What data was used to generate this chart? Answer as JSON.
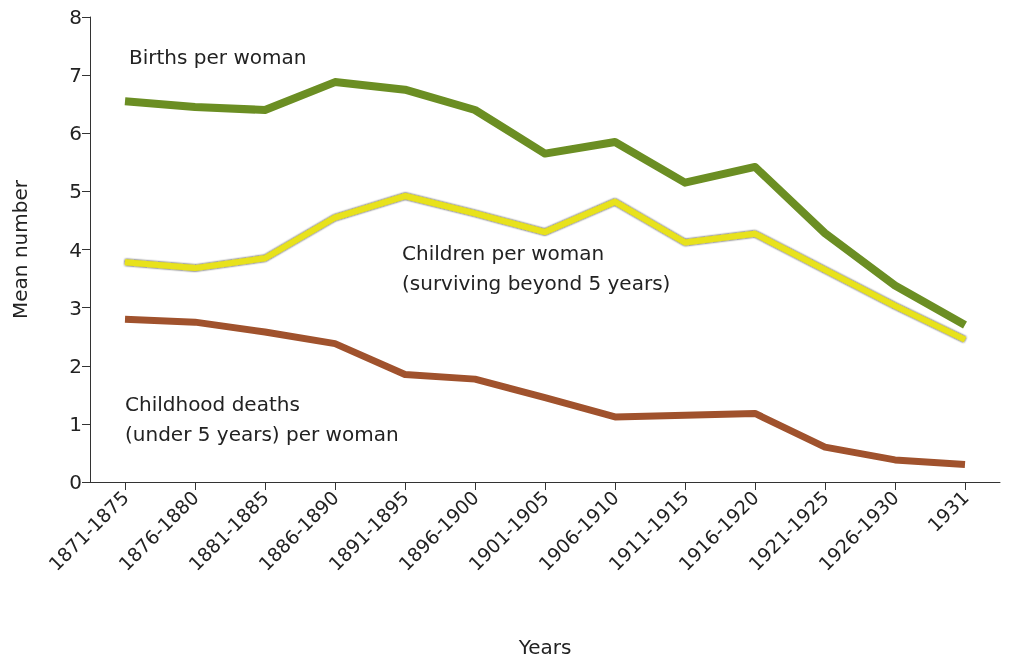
{
  "chart_data": {
    "type": "line",
    "xlabel": "Years",
    "ylabel": "Mean number",
    "categories": [
      "1871-1875",
      "1876-1880",
      "1881-1885",
      "1886-1890",
      "1891-1895",
      "1896-1900",
      "1901-1905",
      "1906-1910",
      "1911-1915",
      "1916-1920",
      "1921-1925",
      "1926-1930",
      "1931"
    ],
    "ylim": [
      0,
      8
    ],
    "yticks": [
      0,
      1,
      2,
      3,
      4,
      5,
      6,
      7,
      8
    ],
    "grid": false,
    "legend": false,
    "marker": "none",
    "line_style": "solid",
    "series": [
      {
        "name": "Births per woman",
        "color": "#6b8e23",
        "values": [
          6.55,
          6.45,
          6.4,
          6.88,
          6.75,
          6.4,
          5.65,
          5.85,
          5.15,
          5.42,
          4.28,
          3.38,
          2.7
        ]
      },
      {
        "name": "Children per woman (surviving beyond 5 years)",
        "color": "#e8e21a",
        "values": [
          3.78,
          3.68,
          3.85,
          4.55,
          4.92,
          4.62,
          4.3,
          4.82,
          4.12,
          4.27,
          3.65,
          3.03,
          2.45
        ]
      },
      {
        "name": "Childhood deaths (under 5 years) per woman",
        "color": "#a0522d",
        "values": [
          2.8,
          2.75,
          2.58,
          2.38,
          1.85,
          1.77,
          1.45,
          1.12,
          1.15,
          1.18,
          0.6,
          0.38,
          0.3
        ]
      }
    ]
  }
}
